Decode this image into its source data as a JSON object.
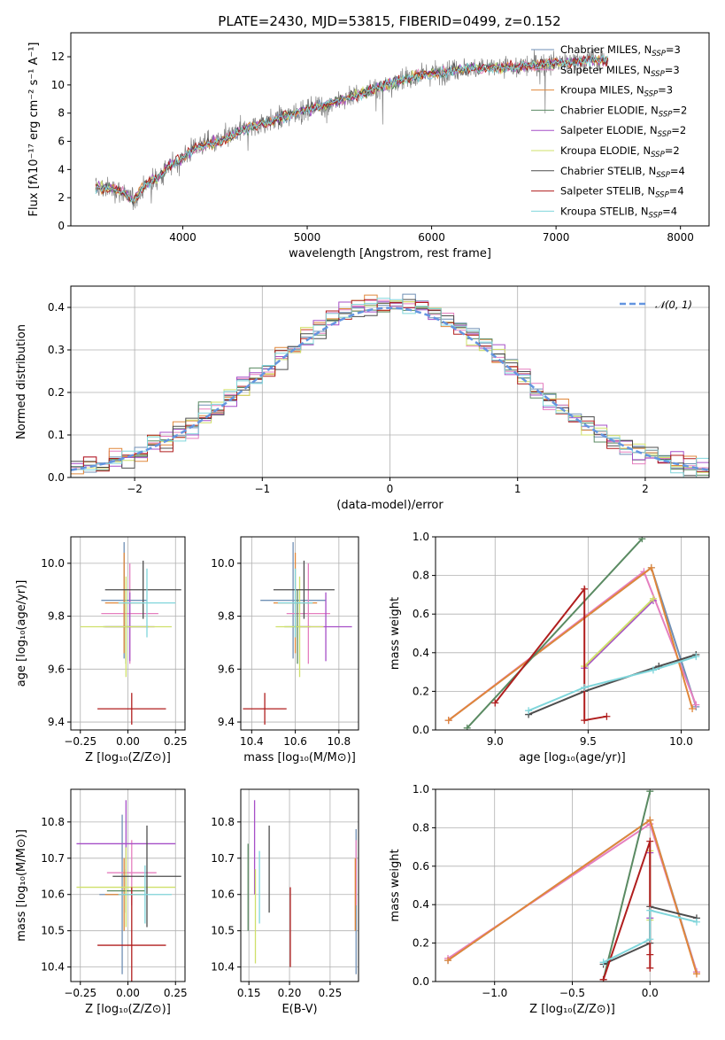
{
  "figure_title": "PLATE=2430, MJD=53815, FIBERID=0499, z=0.152",
  "colors": {
    "Chabrier MILES": "#6f8fb5",
    "Salpeter MILES": "#e57fbf",
    "Kroupa MILES": "#e0873a",
    "Chabrier ELODIE": "#5a8a62",
    "Salpeter ELODIE": "#a64fc7",
    "Kroupa ELODIE": "#cfe06a",
    "Chabrier STELIB": "#4d4d4d",
    "Salpeter STELIB": "#b01e1e",
    "Kroupa STELIB": "#80d6db",
    "data": "#808080",
    "normal": "#6495e0"
  },
  "chart_data": [
    {
      "id": "spectrum",
      "type": "line",
      "xlabel": "wavelength [Angstrom, rest frame]",
      "ylabel": "Flux [fλ10⁻¹⁷ erg cm⁻² s⁻¹ A⁻¹]",
      "xlim": [
        3100,
        8230
      ],
      "ylim": [
        0,
        13.7
      ],
      "xticks": [
        4000,
        5000,
        6000,
        7000,
        8000
      ],
      "yticks": [
        0,
        2,
        4,
        6,
        8,
        10,
        12
      ],
      "grid": false,
      "legend_position": "top-right",
      "x_range_data": [
        3300,
        7420
      ],
      "continuum_x": [
        3300,
        3450,
        3520,
        3600,
        3700,
        3800,
        3900,
        3980,
        4100,
        4300,
        4500,
        4700,
        4900,
        5100,
        5300,
        5500,
        5700,
        5900,
        6100,
        6300,
        6500,
        6700,
        6900,
        7100,
        7300,
        7420
      ],
      "continuum_y": [
        2.7,
        2.6,
        2.4,
        1.8,
        2.9,
        3.4,
        4.3,
        4.7,
        5.6,
        6.0,
        6.9,
        7.4,
        8.0,
        8.5,
        9.0,
        9.6,
        10.2,
        10.7,
        10.9,
        11.2,
        11.2,
        11.3,
        11.5,
        11.6,
        11.8,
        11.8
      ],
      "series": [
        {
          "name": "Chabrier MILES",
          "nssp": 3
        },
        {
          "name": "Salpeter MILES",
          "nssp": 3
        },
        {
          "name": "Kroupa MILES",
          "nssp": 3
        },
        {
          "name": "Chabrier ELODIE",
          "nssp": 2
        },
        {
          "name": "Salpeter ELODIE",
          "nssp": 2
        },
        {
          "name": "Kroupa ELODIE",
          "nssp": 2
        },
        {
          "name": "Chabrier STELIB",
          "nssp": 4
        },
        {
          "name": "Salpeter STELIB",
          "nssp": 4
        },
        {
          "name": "Kroupa STELIB",
          "nssp": 4
        }
      ]
    },
    {
      "id": "residual-histogram",
      "type": "line",
      "xlabel": "(data-model)/error",
      "ylabel": "Normed distribution",
      "xlim": [
        -2.5,
        2.5
      ],
      "ylim": [
        0,
        0.45
      ],
      "xticks": [
        -2,
        -1,
        0,
        1,
        2
      ],
      "yticks": [
        0.0,
        0.1,
        0.2,
        0.3,
        0.4
      ],
      "grid": true,
      "legend_position": "top-right",
      "reference_curve": {
        "name": "𝒩(0, 1)",
        "mean": 0,
        "sigma": 1,
        "style": "dashed"
      },
      "bins": {
        "start": -2.5,
        "width": 0.1,
        "count": 50
      }
    },
    {
      "id": "age-vs-metallicity",
      "type": "scatter",
      "xlabel": "Z [log₁₀(Z/Z⊙)]",
      "ylabel": "age  [log₁₀(age/yr)]",
      "xlim": [
        -0.3,
        0.3
      ],
      "ylim": [
        9.37,
        10.1
      ],
      "xticks": [
        -0.25,
        0.0,
        0.25
      ],
      "yticks": [
        9.4,
        9.6,
        9.8,
        10.0
      ],
      "grid": true,
      "points": [
        {
          "series": "Chabrier MILES",
          "x": -0.02,
          "y": 9.86,
          "xerr": 0.12,
          "yerr": 0.22
        },
        {
          "series": "Salpeter MILES",
          "x": 0.01,
          "y": 9.81,
          "xerr": 0.15,
          "yerr": 0.19
        },
        {
          "series": "Kroupa MILES",
          "x": -0.02,
          "y": 9.85,
          "xerr": 0.1,
          "yerr": 0.19
        },
        {
          "series": "Chabrier ELODIE",
          "x": -0.01,
          "y": 9.76,
          "xerr": 0.12,
          "yerr": 0.14
        },
        {
          "series": "Salpeter ELODIE",
          "x": 0.01,
          "y": 9.76,
          "xerr": 0.13,
          "yerr": 0.13
        },
        {
          "series": "Kroupa ELODIE",
          "x": -0.01,
          "y": 9.76,
          "xerr": 0.24,
          "yerr": 0.19
        },
        {
          "series": "Chabrier STELIB",
          "x": 0.08,
          "y": 9.9,
          "xerr": 0.2,
          "yerr": 0.11
        },
        {
          "series": "Salpeter STELIB",
          "x": 0.02,
          "y": 9.45,
          "xerr": 0.18,
          "yerr": 0.06
        },
        {
          "series": "Kroupa STELIB",
          "x": 0.1,
          "y": 9.85,
          "xerr": 0.15,
          "yerr": 0.13
        }
      ]
    },
    {
      "id": "age-vs-mass",
      "type": "scatter",
      "xlabel": "mass [log₁₀(M/M⊙)]",
      "ylabel": "",
      "xlim": [
        10.35,
        10.89
      ],
      "ylim": [
        9.37,
        10.1
      ],
      "xticks": [
        10.4,
        10.6,
        10.8
      ],
      "yticks": [
        9.4,
        9.6,
        9.8,
        10.0
      ],
      "grid": true,
      "points": [
        {
          "series": "Chabrier MILES",
          "x": 10.59,
          "y": 9.86,
          "xerr": 0.15,
          "yerr": 0.22
        },
        {
          "series": "Salpeter MILES",
          "x": 10.66,
          "y": 9.81,
          "xerr": 0.1,
          "yerr": 0.19
        },
        {
          "series": "Kroupa MILES",
          "x": 10.6,
          "y": 9.85,
          "xerr": 0.1,
          "yerr": 0.19
        },
        {
          "series": "Chabrier ELODIE",
          "x": 10.61,
          "y": 9.76,
          "xerr": 0.06,
          "yerr": 0.14
        },
        {
          "series": "Salpeter ELODIE",
          "x": 10.74,
          "y": 9.76,
          "xerr": 0.12,
          "yerr": 0.13
        },
        {
          "series": "Kroupa ELODIE",
          "x": 10.62,
          "y": 9.76,
          "xerr": 0.11,
          "yerr": 0.19
        },
        {
          "series": "Chabrier STELIB",
          "x": 10.64,
          "y": 9.9,
          "xerr": 0.14,
          "yerr": 0.11
        },
        {
          "series": "Salpeter STELIB",
          "x": 10.46,
          "y": 9.45,
          "xerr": 0.1,
          "yerr": 0.06
        },
        {
          "series": "Kroupa STELIB",
          "x": 10.6,
          "y": 9.85,
          "xerr": 0.08,
          "yerr": 0.13
        }
      ]
    },
    {
      "id": "mass-weight-vs-age",
      "type": "line",
      "xlabel": "age  [log₁₀(age/yr)]",
      "ylabel": "mass weight",
      "xlim": [
        8.68,
        10.15
      ],
      "ylim": [
        0,
        1.0
      ],
      "xticks": [
        9.0,
        9.5,
        10.0
      ],
      "yticks": [
        0.0,
        0.2,
        0.4,
        0.6,
        0.8,
        1.0
      ],
      "grid": true,
      "series": [
        {
          "name": "Chabrier MILES",
          "x": [
            8.75,
            9.84,
            10.08
          ],
          "y": [
            0.05,
            0.84,
            0.12
          ]
        },
        {
          "name": "Salpeter MILES",
          "x": [
            8.75,
            9.8,
            10.08
          ],
          "y": [
            0.05,
            0.82,
            0.13
          ]
        },
        {
          "name": "Kroupa MILES",
          "x": [
            8.75,
            9.84,
            10.06
          ],
          "y": [
            0.05,
            0.84,
            0.11
          ]
        },
        {
          "name": "Chabrier ELODIE",
          "x": [
            8.85,
            9.79
          ],
          "y": [
            0.01,
            0.99
          ]
        },
        {
          "name": "Salpeter ELODIE",
          "x": [
            9.48,
            9.85
          ],
          "y": [
            0.32,
            0.67
          ]
        },
        {
          "name": "Kroupa ELODIE",
          "x": [
            9.48,
            9.85
          ],
          "y": [
            0.33,
            0.68
          ]
        },
        {
          "name": "Chabrier STELIB",
          "x": [
            9.18,
            9.48,
            9.88,
            10.08
          ],
          "y": [
            0.08,
            0.2,
            0.33,
            0.39
          ]
        },
        {
          "name": "Salpeter STELIB",
          "x": [
            9.0,
            9.48,
            9.48,
            9.6
          ],
          "y": [
            0.14,
            0.73,
            0.05,
            0.07
          ]
        },
        {
          "name": "Kroupa STELIB",
          "x": [
            9.18,
            9.48,
            9.85,
            10.08
          ],
          "y": [
            0.1,
            0.22,
            0.31,
            0.38
          ]
        }
      ]
    },
    {
      "id": "mass-vs-metallicity",
      "type": "scatter",
      "xlabel": "Z [log₁₀(Z/Z⊙)]",
      "ylabel": "mass [log₁₀(M/M⊙)]",
      "xlim": [
        -0.3,
        0.3
      ],
      "ylim": [
        10.36,
        10.89
      ],
      "xticks": [
        -0.25,
        0.0,
        0.25
      ],
      "yticks": [
        10.4,
        10.5,
        10.6,
        10.7,
        10.8
      ],
      "grid": true,
      "points": [
        {
          "series": "Chabrier MILES",
          "x": -0.03,
          "y": 10.6,
          "xerr": 0.12,
          "yerr": 0.22
        },
        {
          "series": "Salpeter MILES",
          "x": 0.02,
          "y": 10.66,
          "xerr": 0.13,
          "yerr": 0.09
        },
        {
          "series": "Kroupa MILES",
          "x": -0.02,
          "y": 10.6,
          "xerr": 0.1,
          "yerr": 0.1
        },
        {
          "series": "Chabrier ELODIE",
          "x": -0.01,
          "y": 10.61,
          "xerr": 0.1,
          "yerr": 0.06
        },
        {
          "series": "Salpeter ELODIE",
          "x": -0.01,
          "y": 10.74,
          "xerr": 0.26,
          "yerr": 0.12
        },
        {
          "series": "Kroupa ELODIE",
          "x": -0.01,
          "y": 10.62,
          "xerr": 0.26,
          "yerr": 0.11
        },
        {
          "series": "Chabrier STELIB",
          "x": 0.1,
          "y": 10.65,
          "xerr": 0.18,
          "yerr": 0.14
        },
        {
          "series": "Salpeter STELIB",
          "x": 0.02,
          "y": 10.46,
          "xerr": 0.18,
          "yerr": 0.16
        },
        {
          "series": "Kroupa STELIB",
          "x": 0.09,
          "y": 10.6,
          "xerr": 0.14,
          "yerr": 0.08
        }
      ]
    },
    {
      "id": "mass-vs-ebv",
      "type": "scatter",
      "xlabel": "E(B-V)",
      "ylabel": "",
      "xlim": [
        0.14,
        0.285
      ],
      "ylim": [
        10.36,
        10.89
      ],
      "xticks": [
        0.15,
        0.2,
        0.25
      ],
      "yticks": [
        10.4,
        10.5,
        10.6,
        10.7,
        10.8
      ],
      "grid": true,
      "points": [
        {
          "series": "Chabrier MILES",
          "x": 0.282,
          "y": 10.58,
          "yerr": 0.2
        },
        {
          "series": "Salpeter MILES",
          "x": 0.282,
          "y": 10.66,
          "yerr": 0.09
        },
        {
          "series": "Kroupa MILES",
          "x": 0.281,
          "y": 10.6,
          "yerr": 0.1
        },
        {
          "series": "Chabrier ELODIE",
          "x": 0.149,
          "y": 10.62,
          "yerr": 0.12
        },
        {
          "series": "Salpeter ELODIE",
          "x": 0.157,
          "y": 10.73,
          "yerr": 0.13
        },
        {
          "series": "Kroupa ELODIE",
          "x": 0.158,
          "y": 10.54,
          "yerr": 0.13
        },
        {
          "series": "Chabrier STELIB",
          "x": 0.175,
          "y": 10.67,
          "yerr": 0.12
        },
        {
          "series": "Salpeter STELIB",
          "x": 0.201,
          "y": 10.51,
          "yerr": 0.11
        },
        {
          "series": "Kroupa STELIB",
          "x": 0.163,
          "y": 10.62,
          "yerr": 0.1
        }
      ]
    },
    {
      "id": "mass-weight-vs-metallicity",
      "type": "line",
      "xlabel": "Z [log₁₀(Z/Z⊙)]",
      "ylabel": "mass weight",
      "xlim": [
        -1.38,
        0.38
      ],
      "ylim": [
        0,
        1.0
      ],
      "xticks": [
        -1.0,
        -0.5,
        0.0
      ],
      "yticks": [
        0.0,
        0.2,
        0.4,
        0.6,
        0.8,
        1.0
      ],
      "grid": true,
      "series": [
        {
          "name": "Chabrier MILES",
          "x": [
            -1.3,
            0.0,
            0.3
          ],
          "y": [
            0.11,
            0.84,
            0.05
          ]
        },
        {
          "name": "Salpeter MILES",
          "x": [
            -1.3,
            0.0,
            0.3
          ],
          "y": [
            0.12,
            0.82,
            0.05
          ]
        },
        {
          "name": "Kroupa MILES",
          "x": [
            -1.3,
            0.0,
            0.3
          ],
          "y": [
            0.11,
            0.84,
            0.04
          ]
        },
        {
          "name": "Chabrier ELODIE",
          "x": [
            -0.3,
            0.0
          ],
          "y": [
            0.01,
            0.99
          ]
        },
        {
          "name": "Salpeter ELODIE",
          "x": [
            0.0,
            0.0
          ],
          "y": [
            0.33,
            0.67
          ]
        },
        {
          "name": "Kroupa ELODIE",
          "x": [
            0.0,
            0.0
          ],
          "y": [
            0.32,
            0.68
          ]
        },
        {
          "name": "Chabrier STELIB",
          "x": [
            -0.3,
            0.0,
            0.0,
            0.3
          ],
          "y": [
            0.09,
            0.2,
            0.39,
            0.33
          ]
        },
        {
          "name": "Salpeter STELIB",
          "x": [
            -0.3,
            0.0,
            0.0,
            0.0
          ],
          "y": [
            0.01,
            0.73,
            0.07,
            0.14
          ]
        },
        {
          "name": "Kroupa STELIB",
          "x": [
            -0.3,
            0.0,
            0.0,
            0.3
          ],
          "y": [
            0.1,
            0.22,
            0.37,
            0.31
          ]
        }
      ]
    }
  ]
}
